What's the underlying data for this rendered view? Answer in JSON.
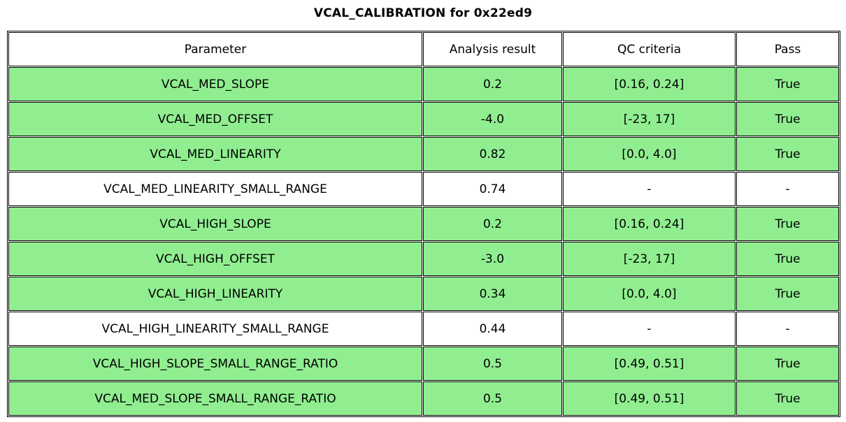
{
  "title": "VCAL_CALIBRATION for 0x22ed9",
  "colors": {
    "pass_row_bg": "#90ee90",
    "default_row_bg": "#ffffff",
    "border": "#000000",
    "text": "#000000"
  },
  "chart_data": {
    "type": "table",
    "title": "VCAL_CALIBRATION for 0x22ed9",
    "columns": [
      "Parameter",
      "Analysis result",
      "QC criteria",
      "Pass"
    ],
    "rows": [
      {
        "parameter": "VCAL_MED_SLOPE",
        "analysis_result": "0.2",
        "qc_criteria": "[0.16, 0.24]",
        "pass": "True",
        "highlighted": true
      },
      {
        "parameter": "VCAL_MED_OFFSET",
        "analysis_result": "-4.0",
        "qc_criteria": "[-23, 17]",
        "pass": "True",
        "highlighted": true
      },
      {
        "parameter": "VCAL_MED_LINEARITY",
        "analysis_result": "0.82",
        "qc_criteria": "[0.0, 4.0]",
        "pass": "True",
        "highlighted": true
      },
      {
        "parameter": "VCAL_MED_LINEARITY_SMALL_RANGE",
        "analysis_result": "0.74",
        "qc_criteria": "-",
        "pass": "-",
        "highlighted": false
      },
      {
        "parameter": "VCAL_HIGH_SLOPE",
        "analysis_result": "0.2",
        "qc_criteria": "[0.16, 0.24]",
        "pass": "True",
        "highlighted": true
      },
      {
        "parameter": "VCAL_HIGH_OFFSET",
        "analysis_result": "-3.0",
        "qc_criteria": "[-23, 17]",
        "pass": "True",
        "highlighted": true
      },
      {
        "parameter": "VCAL_HIGH_LINEARITY",
        "analysis_result": "0.34",
        "qc_criteria": "[0.0, 4.0]",
        "pass": "True",
        "highlighted": true
      },
      {
        "parameter": "VCAL_HIGH_LINEARITY_SMALL_RANGE",
        "analysis_result": "0.44",
        "qc_criteria": "-",
        "pass": "-",
        "highlighted": false
      },
      {
        "parameter": "VCAL_HIGH_SLOPE_SMALL_RANGE_RATIO",
        "analysis_result": "0.5",
        "qc_criteria": "[0.49, 0.51]",
        "pass": "True",
        "highlighted": true
      },
      {
        "parameter": "VCAL_MED_SLOPE_SMALL_RANGE_RATIO",
        "analysis_result": "0.5",
        "qc_criteria": "[0.49, 0.51]",
        "pass": "True",
        "highlighted": true
      }
    ]
  }
}
